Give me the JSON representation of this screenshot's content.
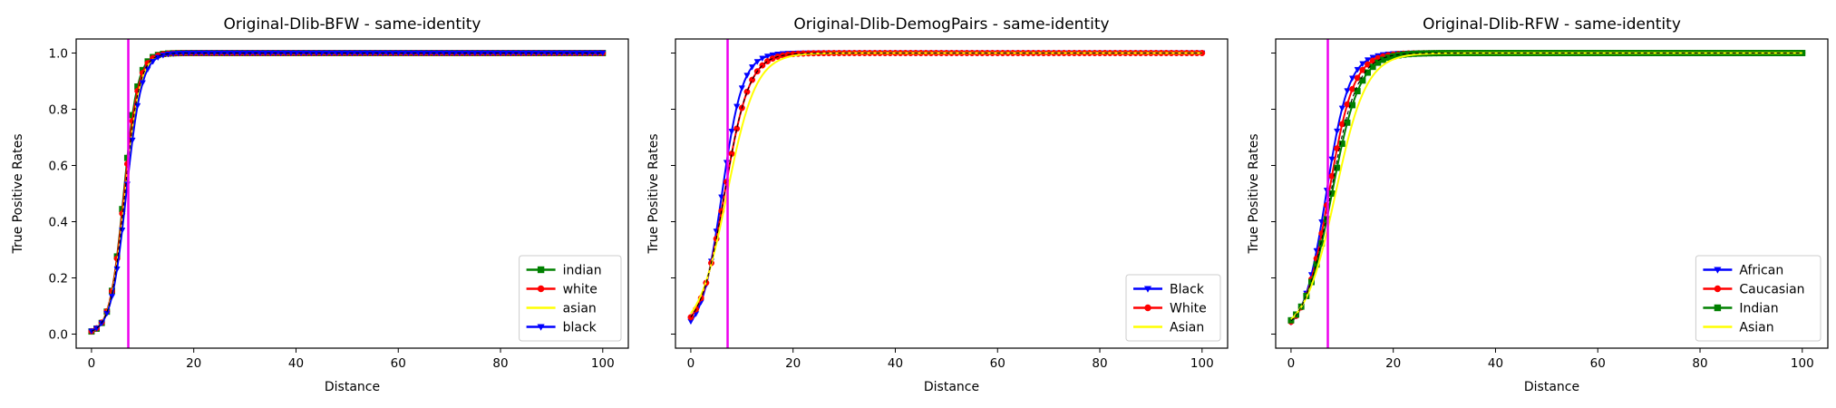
{
  "chart_data": [
    {
      "type": "line",
      "title": "Original-Dlib-BFW - same-identity",
      "xlabel": "Distance",
      "ylabel": "True Positive Rates",
      "xlim": [
        -3,
        105
      ],
      "ylim": [
        -0.05,
        1.05
      ],
      "xticks": [
        0,
        20,
        40,
        60,
        80,
        100
      ],
      "yticks": [
        0.0,
        0.2,
        0.4,
        0.6,
        0.8,
        1.0
      ],
      "show_ytick_labels": true,
      "threshold": 7.2,
      "threshold_color": "#ee00ee",
      "legend_position": "lower-right",
      "series": [
        {
          "name": "indian",
          "color": "#008000",
          "marker": "square",
          "midpoint": 6.3,
          "width": 1.35
        },
        {
          "name": "white",
          "color": "#ff0000",
          "marker": "circle",
          "midpoint": 6.4,
          "width": 1.4
        },
        {
          "name": "asian",
          "color": "#ffff00",
          "marker": "none",
          "midpoint": 6.6,
          "width": 1.45
        },
        {
          "name": "black",
          "color": "#0000ff",
          "marker": "triangle",
          "midpoint": 6.8,
          "width": 1.5
        }
      ]
    },
    {
      "type": "line",
      "title": "Original-Dlib-DemogPairs - same-identity",
      "xlabel": "Distance",
      "ylabel": "True Positive Rates",
      "xlim": [
        -3,
        105
      ],
      "ylim": [
        -0.05,
        1.05
      ],
      "xticks": [
        0,
        20,
        40,
        60,
        80,
        100
      ],
      "yticks": [
        0.0,
        0.2,
        0.4,
        0.6,
        0.8,
        1.0
      ],
      "show_ytick_labels": false,
      "threshold": 7.2,
      "threshold_color": "#ee00ee",
      "legend_position": "lower-right",
      "series": [
        {
          "name": "Black",
          "color": "#0000ff",
          "marker": "triangle",
          "midpoint": 6.1,
          "width": 2.0
        },
        {
          "name": "White",
          "color": "#ff0000",
          "marker": "circle",
          "midpoint": 6.6,
          "width": 2.4
        },
        {
          "name": "Asian",
          "color": "#ffff00",
          "marker": "none",
          "midpoint": 7.1,
          "width": 2.8
        }
      ]
    },
    {
      "type": "line",
      "title": "Original-Dlib-RFW - same-identity",
      "xlabel": "Distance",
      "ylabel": "True Positive Rates",
      "xlim": [
        -3,
        105
      ],
      "ylim": [
        -0.05,
        1.05
      ],
      "xticks": [
        0,
        20,
        40,
        60,
        80,
        100
      ],
      "yticks": [
        0.0,
        0.2,
        0.4,
        0.6,
        0.8,
        1.0
      ],
      "show_ytick_labels": false,
      "threshold": 7.2,
      "threshold_color": "#ee00ee",
      "legend_position": "lower-right",
      "series": [
        {
          "name": "African",
          "color": "#0000ff",
          "marker": "triangle",
          "midpoint": 6.9,
          "width": 2.2
        },
        {
          "name": "Caucasian",
          "color": "#ff0000",
          "marker": "circle",
          "midpoint": 7.4,
          "width": 2.4
        },
        {
          "name": "Indian",
          "color": "#008000",
          "marker": "square",
          "midpoint": 8.0,
          "width": 2.7
        },
        {
          "name": "Asian",
          "color": "#ffff00",
          "marker": "none",
          "midpoint": 8.7,
          "width": 3.0
        }
      ]
    }
  ]
}
